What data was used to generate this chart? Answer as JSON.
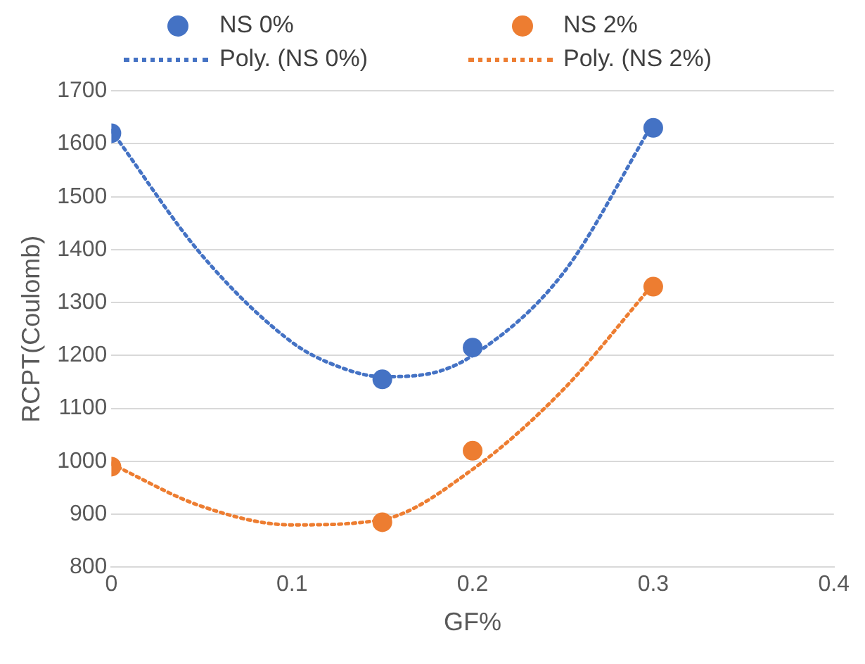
{
  "chart_data": {
    "type": "scatter",
    "xlabel": "GF%",
    "ylabel": "RCPT(Coulomb)",
    "xlim": [
      0,
      0.4
    ],
    "xticks": [
      0,
      0.1,
      0.2,
      0.3,
      0.4
    ],
    "ylim": [
      800,
      1700
    ],
    "yticks": [
      800,
      900,
      1000,
      1100,
      1200,
      1300,
      1400,
      1500,
      1600,
      1700
    ],
    "grid": "y",
    "legend": "top",
    "marker": "circle",
    "series": [
      {
        "name": "NS 0%",
        "color": "#4472c4",
        "x": [
          0,
          0.15,
          0.2,
          0.3
        ],
        "values": [
          1620,
          1155,
          1215,
          1630
        ]
      },
      {
        "name": "NS 2%",
        "color": "#ed7d31",
        "x": [
          0,
          0.15,
          0.2,
          0.3
        ],
        "values": [
          990,
          885,
          1020,
          1330
        ]
      },
      {
        "name": "Poly. (NS 0%)",
        "type": "line",
        "marker": "none",
        "line_style": "dotted",
        "color": "#4472c4",
        "x": [
          0,
          0.05,
          0.1,
          0.125,
          0.15,
          0.175,
          0.2,
          0.25,
          0.3
        ],
        "values": [
          1625,
          1390,
          1225,
          1180,
          1160,
          1165,
          1200,
          1355,
          1640
        ]
      },
      {
        "name": "Poly. (NS 2%)",
        "type": "line",
        "marker": "none",
        "line_style": "dotted",
        "color": "#ed7d31",
        "x": [
          0,
          0.05,
          0.1,
          0.15,
          0.2,
          0.25,
          0.3
        ],
        "values": [
          995,
          915,
          880,
          890,
          985,
          1135,
          1335
        ]
      }
    ]
  }
}
